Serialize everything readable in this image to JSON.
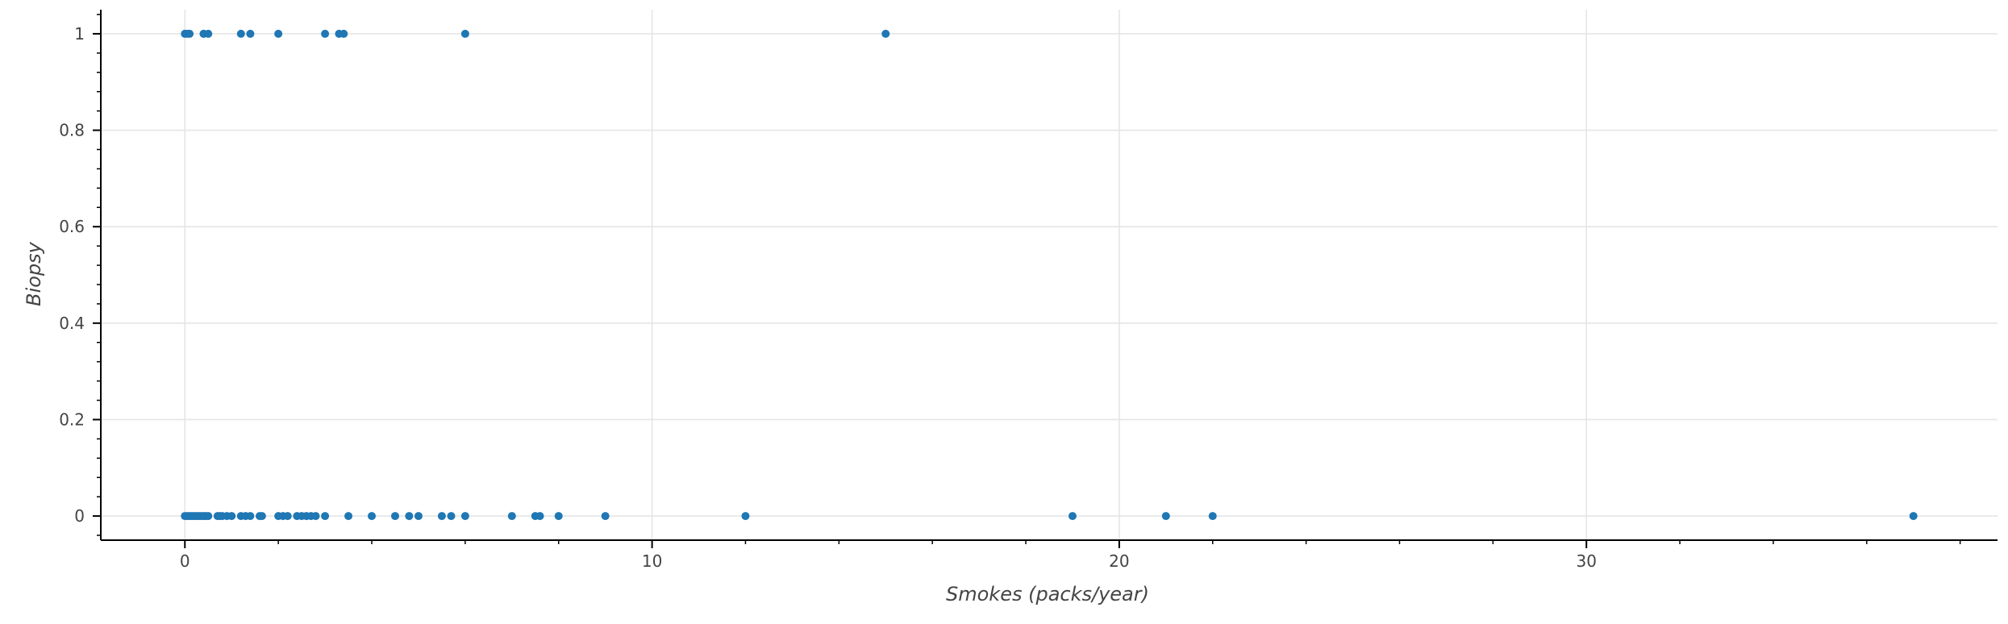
{
  "chart_data": {
    "type": "scatter",
    "xlabel": "Smokes (packs/year)",
    "ylabel": "Biopsy",
    "xlim": [
      -1.8,
      38.8
    ],
    "ylim": [
      -0.05,
      1.05
    ],
    "x_ticks": [
      0,
      10,
      20,
      30
    ],
    "x_tick_labels": [
      "0",
      "10",
      "20",
      "30"
    ],
    "y_ticks": [
      0,
      0.2,
      0.4,
      0.6,
      0.8,
      1
    ],
    "y_tick_labels": [
      "0",
      "0.2",
      "0.4",
      "0.6",
      "0.8",
      "1"
    ],
    "grid": true,
    "color": "#1f77b4",
    "series": [
      {
        "x": [
          0,
          0.05,
          0.1,
          0.4,
          0.5,
          1.2,
          1.4,
          2,
          3,
          3.3,
          3.4,
          6,
          15,
          0,
          0.05,
          0.1,
          0.15,
          0.2,
          0.25,
          0.3,
          0.35,
          0.4,
          0.45,
          0.5,
          0.7,
          0.75,
          0.8,
          0.9,
          1,
          1.2,
          1.3,
          1.4,
          1.6,
          1.65,
          2,
          2.1,
          2.2,
          2.4,
          2.5,
          2.6,
          2.7,
          2.8,
          3,
          3.5,
          4,
          4.5,
          4.8,
          5,
          5.5,
          5.7,
          6,
          7,
          7.5,
          7.6,
          8,
          9,
          12,
          19,
          21,
          22,
          37
        ],
        "y": [
          1,
          1,
          1,
          1,
          1,
          1,
          1,
          1,
          1,
          1,
          1,
          1,
          1,
          0,
          0,
          0,
          0,
          0,
          0,
          0,
          0,
          0,
          0,
          0,
          0,
          0,
          0,
          0,
          0,
          0,
          0,
          0,
          0,
          0,
          0,
          0,
          0,
          0,
          0,
          0,
          0,
          0,
          0,
          0,
          0,
          0,
          0,
          0,
          0,
          0,
          0,
          0,
          0,
          0,
          0,
          0,
          0,
          0,
          0,
          0,
          0
        ]
      }
    ]
  }
}
